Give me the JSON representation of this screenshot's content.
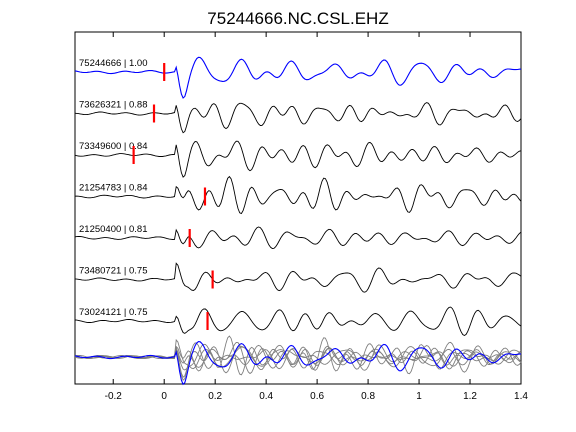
{
  "chart_data": {
    "type": "line",
    "title": "75244666.NC.CSL.EHZ",
    "xlabel": "",
    "ylabel": "",
    "xlim": [
      -0.35,
      1.4
    ],
    "xticks": [
      -0.2,
      0,
      0.2,
      0.4,
      0.6,
      0.8,
      1,
      1.2,
      1.4
    ],
    "xtick_labels": [
      "-0.2",
      "0",
      "0.2",
      "0.4",
      "0.6",
      "0.8",
      "1",
      "1.2",
      "1.4"
    ],
    "grid": false,
    "legend": "none",
    "colors": {
      "reference": "#0000ff",
      "trace": "#000000",
      "stack": "#808080",
      "pick": "#ff0000"
    },
    "traces": [
      {
        "label": "75244666 | 1.00",
        "event_id": "75244666",
        "correlation": 1.0,
        "pick_time": 0.0,
        "reference": true,
        "seed": 11
      },
      {
        "label": "73626321 | 0.88",
        "event_id": "73626321",
        "correlation": 0.88,
        "pick_time": -0.04,
        "reference": false,
        "seed": 23
      },
      {
        "label": "73349600 | 0.84",
        "event_id": "73349600",
        "correlation": 0.84,
        "pick_time": -0.12,
        "reference": false,
        "seed": 37
      },
      {
        "label": "21254783 | 0.84",
        "event_id": "21254783",
        "correlation": 0.84,
        "pick_time": 0.16,
        "reference": false,
        "seed": 41
      },
      {
        "label": "21250400 | 0.81",
        "event_id": "21250400",
        "correlation": 0.81,
        "pick_time": 0.1,
        "reference": false,
        "seed": 53
      },
      {
        "label": "73480721 | 0.75",
        "event_id": "73480721",
        "correlation": 0.75,
        "pick_time": 0.19,
        "reference": false,
        "seed": 67
      },
      {
        "label": "73024121 | 0.75",
        "event_id": "73024121",
        "correlation": 0.75,
        "pick_time": 0.17,
        "reference": false,
        "seed": 79
      }
    ]
  }
}
